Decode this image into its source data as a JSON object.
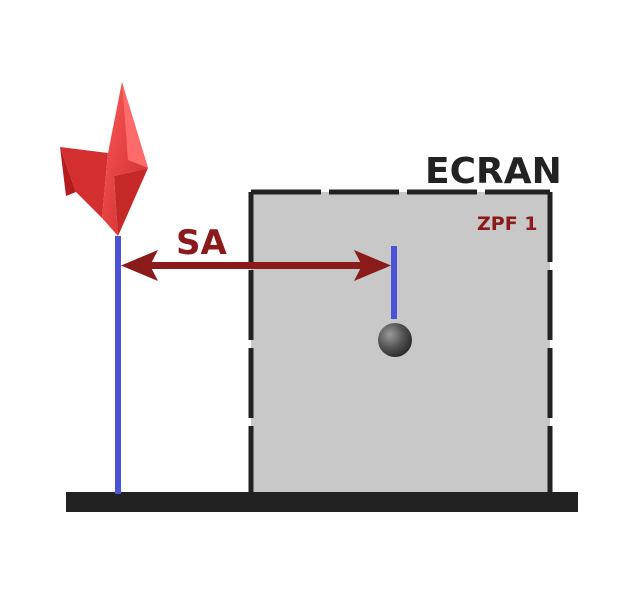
{
  "diagram": {
    "screen_label": "ECRAN",
    "zone_label": "ZPF 1",
    "distance_label": "SA"
  },
  "colors": {
    "screen_fill": "#c8c8c8",
    "screen_outline": "#222222",
    "ground": "#222222",
    "mast": "#4a52d6",
    "arrow": "#8b1a1a",
    "lightning": "#e53935",
    "sphere": "#555555"
  },
  "icons": {
    "lightning": "lightning-bolt-icon",
    "sphere": "sphere-icon"
  }
}
